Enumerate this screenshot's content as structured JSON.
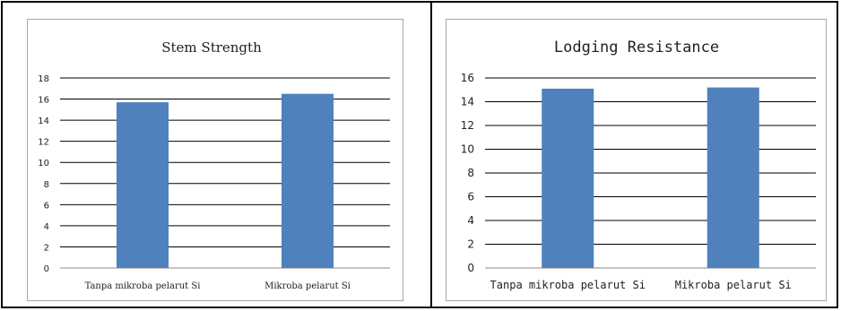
{
  "chart_data": [
    {
      "type": "bar",
      "title": "Stem Strength",
      "categories": [
        "Tanpa mikroba pelarut Si",
        "Mikroba pelarut Si"
      ],
      "values": [
        15.7,
        16.5
      ],
      "ylim": [
        0,
        18
      ],
      "yticks": [
        0,
        2,
        4,
        6,
        8,
        10,
        12,
        14,
        16,
        18
      ],
      "grid": true,
      "bar_color": "#4f81bd"
    },
    {
      "type": "bar",
      "title": "Lodging Resistance",
      "categories": [
        "Tanpa mikroba pelarut Si",
        "Mikroba pelarut Si"
      ],
      "values": [
        15.1,
        15.2
      ],
      "ylim": [
        0,
        16
      ],
      "yticks": [
        0,
        2,
        4,
        6,
        8,
        10,
        12,
        14,
        16
      ],
      "grid": true,
      "bar_color": "#4f81bd"
    }
  ]
}
